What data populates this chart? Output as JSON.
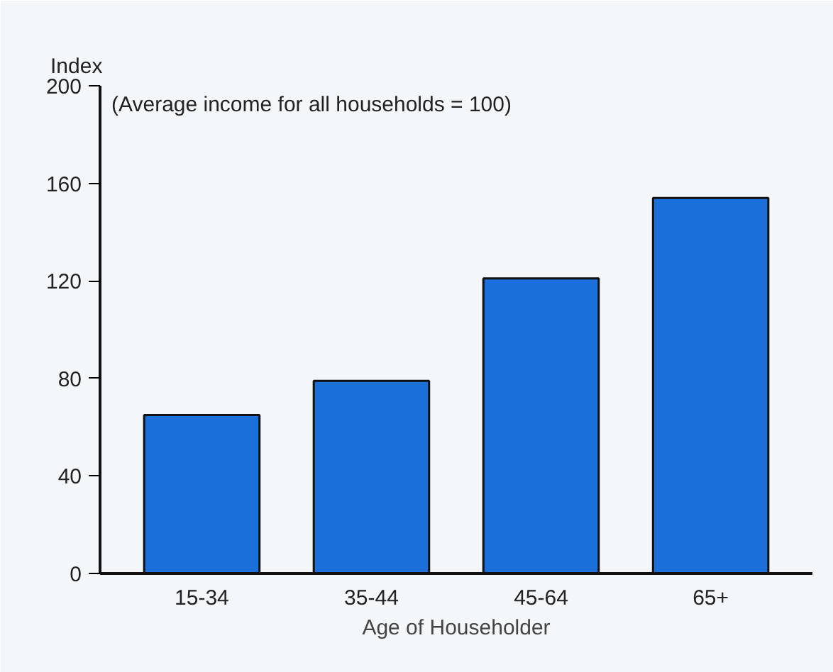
{
  "chart_data": {
    "type": "bar",
    "ylabel": "Index",
    "xlabel": "Age of Householder",
    "annotations": [
      "(Average income for all households = 100)"
    ],
    "categories": [
      "15-34",
      "35-44",
      "45-64",
      "65+"
    ],
    "values": [
      65,
      79,
      121,
      154
    ],
    "color": "#1a6fd8",
    "ylim": [
      0,
      200
    ],
    "yticks": [
      0,
      40,
      80,
      120,
      160,
      200
    ],
    "grid": false
  }
}
